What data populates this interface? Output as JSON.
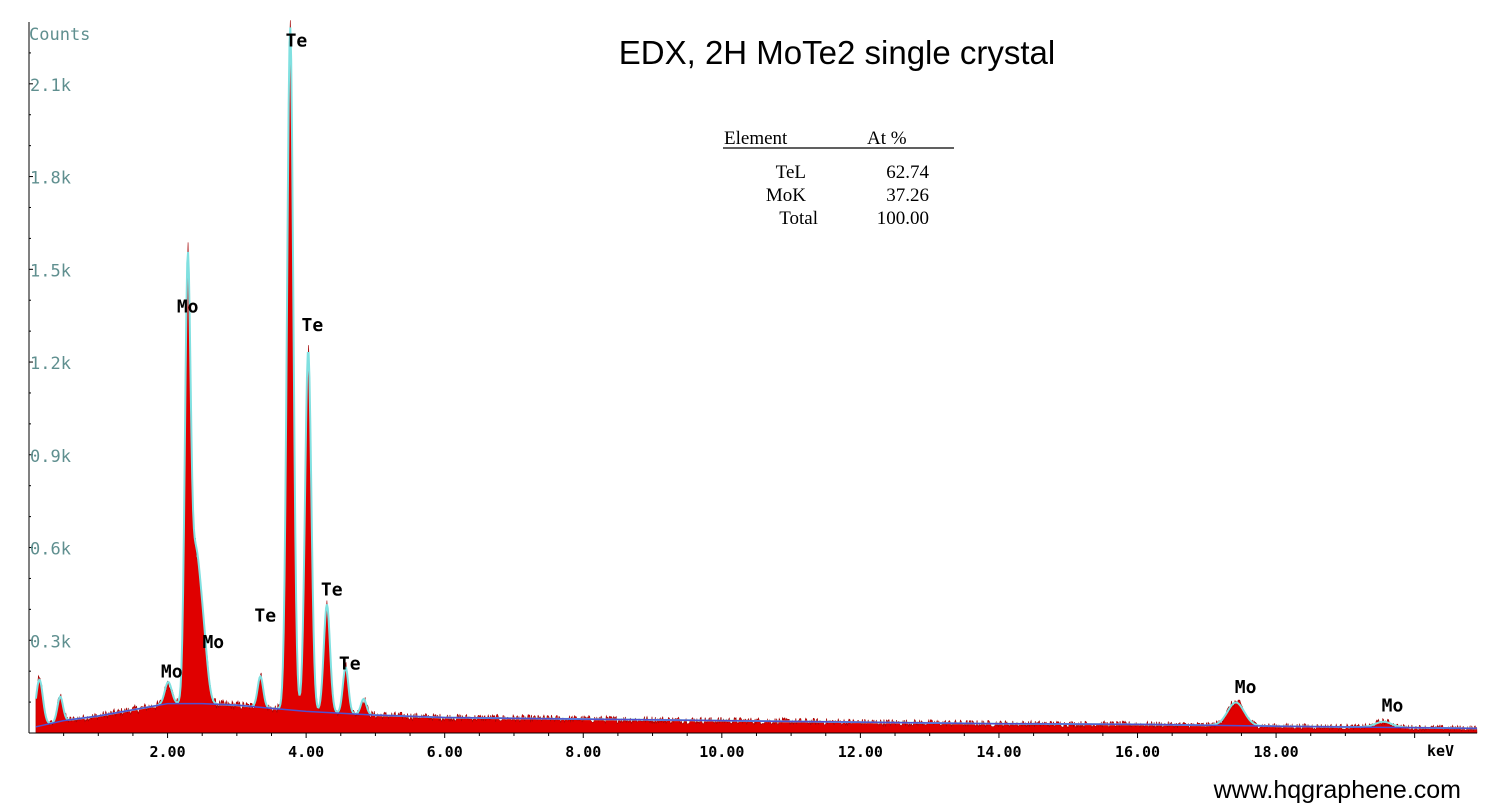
{
  "chart_data": {
    "type": "area",
    "title": "EDX, 2H MoTe2 single crystal",
    "ylabel": "Counts",
    "xlabel": "keV",
    "xlim": [
      0,
      20.9
    ],
    "ylim": [
      0,
      2300
    ],
    "xticks": [
      2,
      4,
      6,
      8,
      10,
      12,
      14,
      16,
      18
    ],
    "xtick_labels": [
      "2.00",
      "4.00",
      "6.00",
      "8.00",
      "10.00",
      "12.00",
      "14.00",
      "16.00",
      "18.00"
    ],
    "yticks": [
      300,
      600,
      900,
      1200,
      1500,
      1800,
      2100
    ],
    "ytick_labels": [
      "0.3k",
      "0.6k",
      "0.9k",
      "1.2k",
      "1.5k",
      "1.8k",
      "2.1k"
    ],
    "spectrum": {
      "baseline": [
        [
          0.1,
          20
        ],
        [
          0.5,
          40
        ],
        [
          1.0,
          55
        ],
        [
          1.5,
          75
        ],
        [
          2.0,
          95
        ],
        [
          2.5,
          95
        ],
        [
          3.0,
          90
        ],
        [
          4.0,
          70
        ],
        [
          5.0,
          58
        ],
        [
          6.0,
          50
        ],
        [
          8.0,
          45
        ],
        [
          10.0,
          40
        ],
        [
          12.0,
          35
        ],
        [
          14.0,
          30
        ],
        [
          16.0,
          28
        ],
        [
          18.0,
          22
        ],
        [
          20.9,
          15
        ]
      ],
      "peaks": [
        {
          "x": 0.15,
          "y": 150,
          "w": 0.05
        },
        {
          "x": 0.45,
          "y": 80,
          "w": 0.04
        },
        {
          "x": 2.01,
          "y": 70,
          "w": 0.05
        },
        {
          "x": 2.29,
          "y": 1320,
          "w": 0.04
        },
        {
          "x": 2.4,
          "y": 470,
          "w": 0.07
        },
        {
          "x": 2.52,
          "y": 170,
          "w": 0.06
        },
        {
          "x": 3.34,
          "y": 100,
          "w": 0.04
        },
        {
          "x": 3.77,
          "y": 2210,
          "w": 0.045
        },
        {
          "x": 4.03,
          "y": 1170,
          "w": 0.045
        },
        {
          "x": 4.3,
          "y": 350,
          "w": 0.045
        },
        {
          "x": 4.57,
          "y": 150,
          "w": 0.04
        },
        {
          "x": 4.83,
          "y": 50,
          "w": 0.04
        },
        {
          "x": 17.42,
          "y": 75,
          "w": 0.12
        },
        {
          "x": 19.55,
          "y": 18,
          "w": 0.12
        }
      ]
    },
    "peak_labels": [
      {
        "text": "Mo",
        "x": 2.29,
        "y": 1360
      },
      {
        "text": "Mo",
        "x": 2.66,
        "y": 275
      },
      {
        "text": "Mo",
        "x": 2.06,
        "y": 180
      },
      {
        "text": "Te",
        "x": 3.86,
        "y": 2220
      },
      {
        "text": "Te",
        "x": 4.09,
        "y": 1300
      },
      {
        "text": "Te",
        "x": 3.41,
        "y": 360
      },
      {
        "text": "Te",
        "x": 4.37,
        "y": 445
      },
      {
        "text": "Te",
        "x": 4.63,
        "y": 205
      },
      {
        "text": "Mo",
        "x": 17.56,
        "y": 130
      },
      {
        "text": "Mo",
        "x": 19.68,
        "y": 70
      }
    ],
    "composition_table": {
      "headers": [
        "Element",
        "At %"
      ],
      "rows": [
        {
          "element": "TeL",
          "value": "62.74"
        },
        {
          "element": "MoK",
          "value": "37.26"
        },
        {
          "element": "Total",
          "value": "100.00"
        }
      ]
    },
    "colors": {
      "fill": "#e00000",
      "outline": "#a00000",
      "fit": "#80e0e0",
      "background_fit": "#5050d0",
      "tick_label": "#5f8f8f"
    }
  },
  "watermark": "www.hqgraphene.com"
}
